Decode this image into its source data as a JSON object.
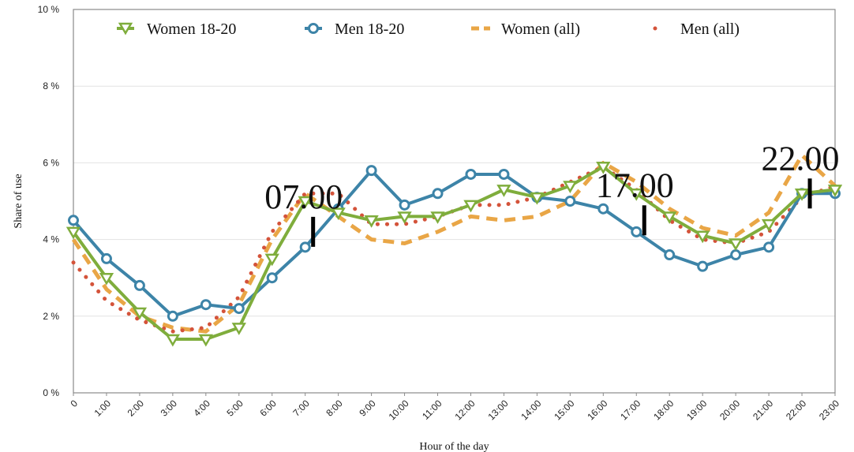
{
  "chart_data": {
    "type": "line",
    "xlabel": "Hour of the day",
    "ylabel": "Share of use",
    "y_unit": "%",
    "ylim": [
      0,
      10
    ],
    "y_ticks": [
      "0 %",
      "2 %",
      "4 %",
      "6 %",
      "8 %",
      "10 %"
    ],
    "y_tick_values": [
      0,
      2,
      4,
      6,
      8,
      10
    ],
    "grid": true,
    "legend_position": "top",
    "x": [
      "0",
      "1:00",
      "2:00",
      "3:00",
      "4:00",
      "5:00",
      "6:00",
      "7:00",
      "8:00",
      "9:00",
      "10:00",
      "11:00",
      "12:00",
      "13:00",
      "14:00",
      "15:00",
      "16:00",
      "17:00",
      "18:00",
      "19:00",
      "20:00",
      "21:00",
      "22:00",
      "23:00"
    ],
    "series": [
      {
        "name": "Women 18-20",
        "color": "#7fad3c",
        "style": "solid-triangle-down",
        "values": [
          4.2,
          3.0,
          2.1,
          1.4,
          1.4,
          1.7,
          3.5,
          5.0,
          4.7,
          4.5,
          4.6,
          4.6,
          4.9,
          5.3,
          5.1,
          5.4,
          5.9,
          5.2,
          4.6,
          4.1,
          3.9,
          4.4,
          5.2,
          5.3
        ]
      },
      {
        "name": "Men 18-20",
        "color": "#3d84a8",
        "style": "solid-circle",
        "values": [
          4.5,
          3.5,
          2.8,
          2.0,
          2.3,
          2.2,
          3.0,
          3.8,
          4.8,
          5.8,
          4.9,
          5.2,
          5.7,
          5.7,
          5.1,
          5.0,
          4.8,
          4.2,
          3.6,
          3.3,
          3.6,
          3.8,
          5.2,
          5.2
        ]
      },
      {
        "name": "Women (all)",
        "color": "#e9a646",
        "style": "dashed",
        "values": [
          4.0,
          2.7,
          2.0,
          1.7,
          1.6,
          2.3,
          4.0,
          5.2,
          4.6,
          4.0,
          3.9,
          4.2,
          4.6,
          4.5,
          4.6,
          5.0,
          6.0,
          5.5,
          4.8,
          4.3,
          4.1,
          4.7,
          6.2,
          5.4
        ]
      },
      {
        "name": "Men (all)",
        "color": "#d4533a",
        "style": "dotted",
        "values": [
          3.4,
          2.4,
          1.9,
          1.6,
          1.7,
          2.5,
          4.2,
          5.2,
          5.2,
          4.4,
          4.4,
          4.6,
          4.9,
          4.9,
          5.1,
          5.5,
          5.9,
          5.3,
          4.5,
          4.0,
          3.9,
          4.2,
          5.1,
          5.4
        ]
      }
    ],
    "annotations": [
      {
        "text": "07.00",
        "hour": 7,
        "marker_y": 4.2
      },
      {
        "text": "17.00",
        "hour": 17,
        "marker_y": 4.5
      },
      {
        "text": "22.00",
        "hour": 22,
        "marker_y": 5.2
      }
    ]
  }
}
